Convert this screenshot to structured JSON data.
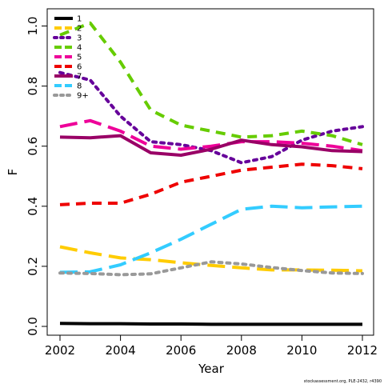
{
  "chart_data": {
    "type": "line",
    "xlabel": "Year",
    "ylabel": "F",
    "xlim": [
      2002,
      2012
    ],
    "ylim": [
      0,
      1.02
    ],
    "x_ticks": [
      2002,
      2004,
      2006,
      2008,
      2010,
      2012
    ],
    "y_ticks": [
      0.0,
      0.2,
      0.4,
      0.6,
      0.8,
      1.0
    ],
    "y_tick_labels": [
      "0.0",
      "0.2",
      "0.4",
      "0.6",
      "0.8",
      "1.0"
    ],
    "grid": false,
    "legend_position": "top-left",
    "x": [
      2002,
      2003,
      2004,
      2005,
      2006,
      2007,
      2008,
      2009,
      2010,
      2011,
      2012
    ],
    "series": [
      {
        "name": "1",
        "color": "#000000",
        "dash": "solid",
        "values": [
          0.01,
          0.009,
          0.009,
          0.008,
          0.008,
          0.007,
          0.007,
          0.007,
          0.007,
          0.007,
          0.007
        ]
      },
      {
        "name": "2",
        "color": "#FFCC00",
        "dash": "long-dash",
        "values": [
          0.265,
          0.245,
          0.228,
          0.222,
          0.212,
          0.203,
          0.195,
          0.188,
          0.188,
          0.187,
          0.185
        ]
      },
      {
        "name": "3",
        "color": "#66009A",
        "dash": "dot",
        "values": [
          0.845,
          0.82,
          0.7,
          0.615,
          0.605,
          0.585,
          0.545,
          0.565,
          0.62,
          0.65,
          0.665
        ]
      },
      {
        "name": "4",
        "color": "#66CC00",
        "dash": "dash",
        "values": [
          0.97,
          1.01,
          0.88,
          0.72,
          0.67,
          0.65,
          0.63,
          0.635,
          0.65,
          0.635,
          0.605
        ]
      },
      {
        "name": "5",
        "color": "#EE0099",
        "dash": "long-dash",
        "values": [
          0.665,
          0.685,
          0.65,
          0.6,
          0.59,
          0.6,
          0.615,
          0.615,
          0.61,
          0.6,
          0.585
        ]
      },
      {
        "name": "6",
        "color": "#EE0000",
        "dash": "dash",
        "values": [
          0.405,
          0.41,
          0.41,
          0.44,
          0.48,
          0.5,
          0.52,
          0.53,
          0.54,
          0.535,
          0.525
        ]
      },
      {
        "name": "7",
        "color": "#990066",
        "dash": "solid",
        "values": [
          0.63,
          0.628,
          0.635,
          0.578,
          0.57,
          0.59,
          0.62,
          0.605,
          0.598,
          0.585,
          0.582
        ]
      },
      {
        "name": "8",
        "color": "#33CCFF",
        "dash": "long-dash",
        "values": [
          0.18,
          0.182,
          0.205,
          0.245,
          0.29,
          0.34,
          0.39,
          0.4,
          0.395,
          0.398,
          0.4
        ]
      },
      {
        "name": "9+",
        "color": "#999999",
        "dash": "dot",
        "values": [
          0.178,
          0.176,
          0.172,
          0.175,
          0.195,
          0.215,
          0.208,
          0.196,
          0.186,
          0.178,
          0.176
        ]
      }
    ]
  },
  "credit": "stockassessment.org, PLE-2432, r4390"
}
